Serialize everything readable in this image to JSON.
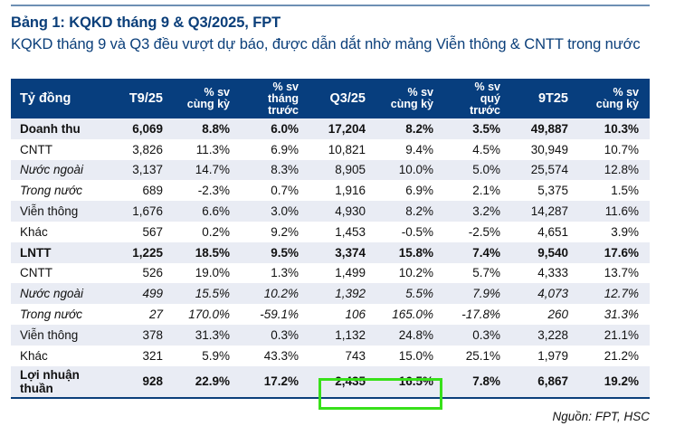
{
  "title": "Bảng 1: KQKD tháng 9 & Q3/2025, FPT",
  "subtitle": "KQKD tháng 9 và Q3 đều vượt dự báo, được dẫn dắt nhờ mảng Viễn thông & CNTT trong nước",
  "table": {
    "headers": [
      {
        "lines": [
          "Tỷ đồng"
        ]
      },
      {
        "lines": [
          "T9/25"
        ]
      },
      {
        "lines": [
          "% sv",
          "cùng kỳ"
        ]
      },
      {
        "lines": [
          "% sv",
          "tháng",
          "trước"
        ]
      },
      {
        "lines": [
          "Q3/25"
        ]
      },
      {
        "lines": [
          "% sv",
          "cùng kỳ"
        ]
      },
      {
        "lines": [
          "% sv",
          "quý",
          "trước"
        ]
      },
      {
        "lines": [
          "9T25"
        ]
      },
      {
        "lines": [
          "% sv",
          "cùng kỳ"
        ]
      }
    ],
    "rows": [
      {
        "label": "Doanh thu",
        "style": "bold",
        "values": [
          "6,069",
          "8.8%",
          "6.0%",
          "17,204",
          "8.2%",
          "3.5%",
          "49,887",
          "10.3%"
        ]
      },
      {
        "label": "CNTT",
        "style": "normal",
        "values": [
          "3,826",
          "11.3%",
          "6.9%",
          "10,821",
          "9.4%",
          "4.5%",
          "30,949",
          "10.7%"
        ]
      },
      {
        "label": "Nước ngoài",
        "style": "italic-label",
        "values": [
          "3,137",
          "14.7%",
          "8.3%",
          "8,905",
          "10.0%",
          "5.0%",
          "25,574",
          "12.8%"
        ]
      },
      {
        "label": "Trong nước",
        "style": "italic-label",
        "values": [
          "689",
          "-2.3%",
          "0.7%",
          "1,916",
          "6.9%",
          "2.1%",
          "5,375",
          "1.5%"
        ]
      },
      {
        "label": "Viễn thông",
        "style": "normal",
        "values": [
          "1,676",
          "6.6%",
          "3.0%",
          "4,930",
          "8.2%",
          "3.2%",
          "14,287",
          "11.6%"
        ]
      },
      {
        "label": "Khác",
        "style": "normal",
        "values": [
          "567",
          "0.2%",
          "9.2%",
          "1,453",
          "-0.5%",
          "-2.5%",
          "4,651",
          "3.9%"
        ]
      },
      {
        "label": "LNTT",
        "style": "bold",
        "values": [
          "1,225",
          "18.5%",
          "9.5%",
          "3,374",
          "15.8%",
          "7.4%",
          "9,540",
          "17.6%"
        ]
      },
      {
        "label": "CNTT",
        "style": "normal",
        "values": [
          "526",
          "19.0%",
          "1.3%",
          "1,499",
          "10.2%",
          "5.7%",
          "4,333",
          "13.7%"
        ]
      },
      {
        "label": "Nước ngoài",
        "style": "italic",
        "values": [
          "499",
          "15.5%",
          "10.2%",
          "1,392",
          "5.5%",
          "7.9%",
          "4,073",
          "12.7%"
        ]
      },
      {
        "label": "Trong nước",
        "style": "italic",
        "values": [
          "27",
          "170.0%",
          "-59.1%",
          "106",
          "165.0%",
          "-17.8%",
          "260",
          "31.3%"
        ]
      },
      {
        "label": "Viễn thông",
        "style": "normal",
        "values": [
          "378",
          "31.3%",
          "0.3%",
          "1,132",
          "24.8%",
          "0.3%",
          "3,228",
          "21.1%"
        ]
      },
      {
        "label": "Khác",
        "style": "normal",
        "values": [
          "321",
          "5.9%",
          "43.3%",
          "743",
          "15.0%",
          "25.1%",
          "1,979",
          "21.2%"
        ]
      },
      {
        "label": "Lợi nhuận thuần",
        "style": "bold",
        "values": [
          "928",
          "22.9%",
          "17.2%",
          "2,435",
          "16.5%",
          "7.8%",
          "6,867",
          "19.2%"
        ]
      }
    ],
    "highlight": {
      "row": "Lợi nhuận thuần",
      "columns": [
        "Q3/25",
        "% sv cùng kỳ"
      ],
      "color": "#38e01a"
    }
  },
  "source": "Nguồn: FPT, HSC",
  "colors": {
    "header_bg": "#073e7e",
    "title": "#0b3f7a",
    "alt_row": "#e9ecf4",
    "highlight": "#38e01a"
  }
}
